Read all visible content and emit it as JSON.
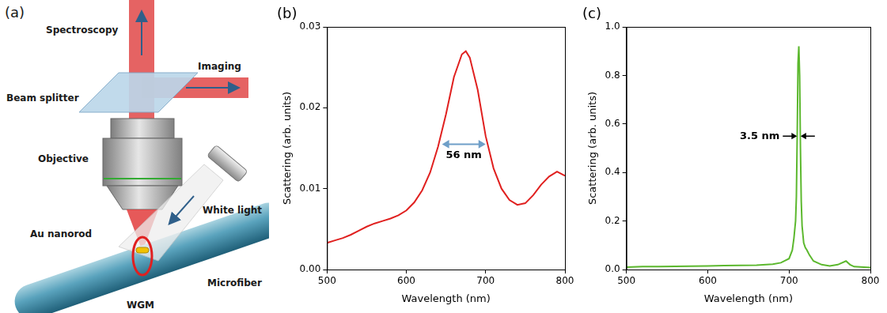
{
  "diagram": {
    "panel": "(a)",
    "labels": {
      "spectroscopy": "Spectroscopy",
      "imaging": "Imaging",
      "beam_splitter": "Beam splitter",
      "objective": "Objective",
      "white_light": "White light",
      "au_nanorod": "Au nanorod",
      "microfiber": "Microfiber",
      "wgm": "WGM"
    }
  },
  "chart_data": [
    {
      "panel": "(b)",
      "type": "line",
      "x_label": "Wavelength (nm)",
      "y_label": "Scattering (arb. units)",
      "x": [
        500,
        510,
        520,
        530,
        540,
        550,
        560,
        570,
        580,
        590,
        600,
        610,
        620,
        630,
        640,
        650,
        660,
        670,
        675,
        680,
        690,
        700,
        710,
        720,
        730,
        740,
        750,
        760,
        770,
        780,
        790,
        800
      ],
      "values": [
        0.0033,
        0.0036,
        0.0039,
        0.0043,
        0.0048,
        0.0053,
        0.0057,
        0.006,
        0.0063,
        0.0067,
        0.0073,
        0.0083,
        0.0098,
        0.012,
        0.0152,
        0.0192,
        0.0238,
        0.0266,
        0.027,
        0.0262,
        0.0222,
        0.0165,
        0.0125,
        0.01,
        0.0086,
        0.008,
        0.0082,
        0.0092,
        0.0105,
        0.0115,
        0.0121,
        0.0116
      ],
      "color": "#e0201f",
      "xlim": [
        500,
        800
      ],
      "xticks": [
        500,
        600,
        700,
        800
      ],
      "ylim": [
        0,
        0.03
      ],
      "yticks": [
        {
          "value": 0,
          "label": "0.00"
        },
        0.01,
        0.02,
        0.03
      ],
      "grid": false,
      "annotations": [
        {
          "text": "56 nm",
          "x": [
            645,
            700
          ],
          "y": 0.0155,
          "marker": "double_arrow"
        }
      ]
    },
    {
      "panel": "(c)",
      "type": "line",
      "x_label": "Wavelength (nm)",
      "y_label": "Scattering (arb. units)",
      "x": [
        500,
        520,
        540,
        560,
        580,
        600,
        620,
        640,
        660,
        680,
        690,
        700,
        704,
        706,
        708,
        709,
        710,
        711,
        712,
        713,
        714,
        715,
        716,
        718,
        720,
        722,
        725,
        730,
        740,
        750,
        760,
        770,
        775,
        780,
        800
      ],
      "values": [
        0.01,
        0.012,
        0.012,
        0.013,
        0.014,
        0.015,
        0.016,
        0.017,
        0.018,
        0.022,
        0.028,
        0.045,
        0.08,
        0.13,
        0.2,
        0.3,
        0.55,
        0.85,
        0.92,
        0.8,
        0.5,
        0.28,
        0.18,
        0.11,
        0.09,
        0.08,
        0.06,
        0.035,
        0.02,
        0.015,
        0.02,
        0.035,
        0.02,
        0.012,
        0.008
      ],
      "color": "#5cb82e",
      "xlim": [
        500,
        800
      ],
      "xticks": [
        500,
        600,
        700,
        800
      ],
      "ylim": [
        0,
        1.0
      ],
      "yticks": [
        {
          "value": 0,
          "label": "0.0"
        },
        0.2,
        0.4,
        0.6,
        0.8,
        {
          "value": 1,
          "label": "1.0"
        }
      ],
      "grid": false,
      "annotations": [
        {
          "text": "3.5 nm",
          "x": [
            709.8,
            714.2
          ],
          "y": 0.55,
          "marker": "inward_arrows"
        }
      ]
    }
  ]
}
